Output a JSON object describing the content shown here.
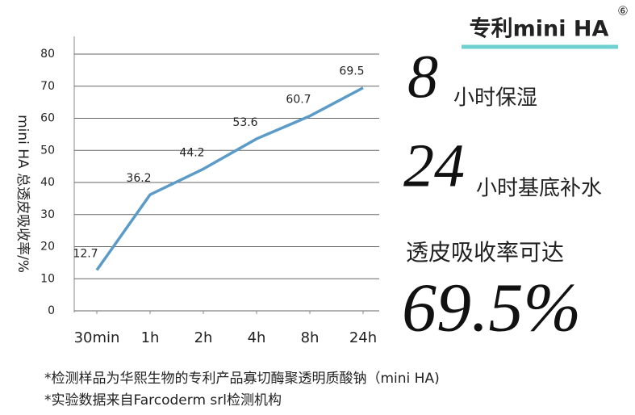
{
  "chart_data": {
    "type": "line",
    "y_label": "mini HA 总透皮吸收率/%",
    "categories": [
      "30min",
      "1h",
      "2h",
      "4h",
      "8h",
      "24h"
    ],
    "values": [
      12.7,
      36.2,
      44.2,
      53.6,
      60.7,
      69.5
    ],
    "color": "#5b9bc8",
    "ylim": [
      0,
      80
    ],
    "yticks": [
      0,
      10,
      20,
      30,
      40,
      50,
      60,
      70,
      80
    ],
    "grid": true
  },
  "panel": {
    "badge": "专利mini HA",
    "badge_number": "⑥",
    "claims": [
      {
        "number": "8",
        "text": "小时保湿"
      },
      {
        "number": "24",
        "text": "小时基底补水"
      }
    ],
    "rate_text": "透皮吸收率可达",
    "rate": "69.5%"
  },
  "footnotes": [
    "*检测样品为华熙生物的专利产品寡切酶聚透明质酸钠（mini HA)",
    "*实验数据来自Farcoderm srl检测机构"
  ]
}
